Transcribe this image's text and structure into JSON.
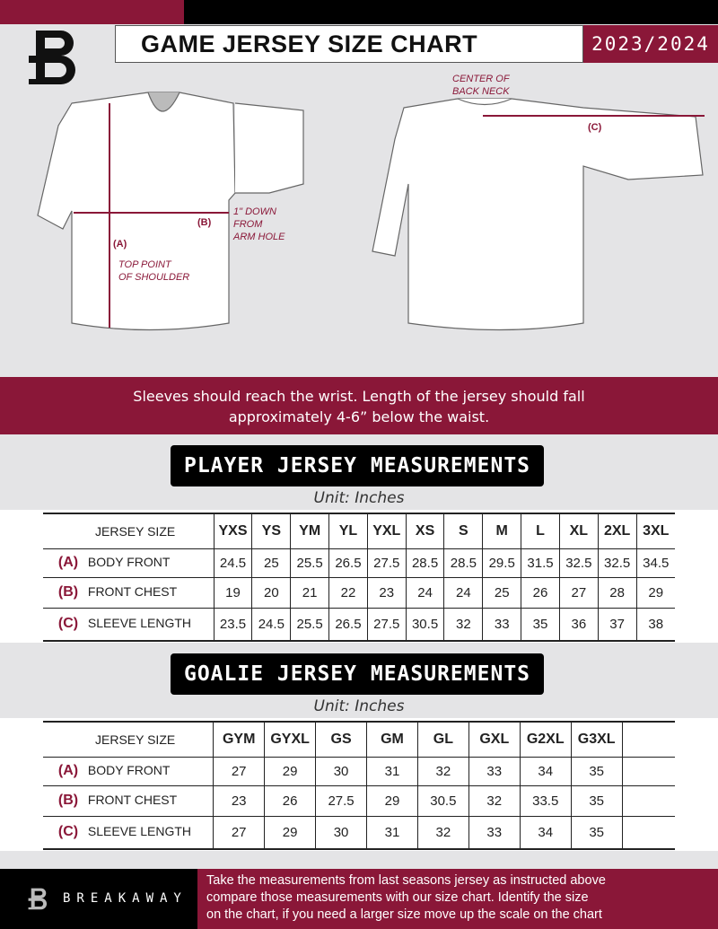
{
  "header": {
    "title": "GAME JERSEY SIZE CHART",
    "season": "2023/2024",
    "logo_letter": "B"
  },
  "diagram": {
    "center_back_neck": [
      "CENTER OF",
      "BACK NECK"
    ],
    "label_a": "(A)",
    "label_b": "(B)",
    "label_c": "(C)",
    "arm_hole_note": [
      "1\" DOWN",
      "FROM",
      "ARM HOLE"
    ],
    "shoulder_note": [
      "TOP POINT",
      "OF SHOULDER"
    ]
  },
  "band_text": [
    "Sleeves should reach the wrist. Length of the jersey should fall",
    "approximately 4-6” below the waist."
  ],
  "player": {
    "title": "PLAYER JERSEY MEASUREMENTS",
    "unit": "Unit: Inches",
    "header_label": "JERSEY SIZE",
    "sizes": [
      "YXS",
      "YS",
      "YM",
      "YL",
      "YXL",
      "XS",
      "S",
      "M",
      "L",
      "XL",
      "2XL",
      "3XL"
    ],
    "rows": [
      {
        "letter": "(A)",
        "label": "BODY FRONT",
        "values": [
          "24.5",
          "25",
          "25.5",
          "26.5",
          "27.5",
          "28.5",
          "28.5",
          "29.5",
          "31.5",
          "32.5",
          "32.5",
          "34.5"
        ]
      },
      {
        "letter": "(B)",
        "label": "FRONT CHEST",
        "values": [
          "19",
          "20",
          "21",
          "22",
          "23",
          "24",
          "24",
          "25",
          "26",
          "27",
          "28",
          "29"
        ]
      },
      {
        "letter": "(C)",
        "label": "SLEEVE LENGTH",
        "values": [
          "23.5",
          "24.5",
          "25.5",
          "26.5",
          "27.5",
          "30.5",
          "32",
          "33",
          "35",
          "36",
          "37",
          "38"
        ]
      }
    ]
  },
  "goalie": {
    "title": "GOALIE JERSEY MEASUREMENTS",
    "unit": "Unit: Inches",
    "header_label": "JERSEY SIZE",
    "sizes": [
      "GYM",
      "GYXL",
      "GS",
      "GM",
      "GL",
      "GXL",
      "G2XL",
      "G3XL",
      ""
    ],
    "rows": [
      {
        "letter": "(A)",
        "label": "BODY FRONT",
        "values": [
          "27",
          "29",
          "30",
          "31",
          "32",
          "33",
          "34",
          "35",
          ""
        ]
      },
      {
        "letter": "(B)",
        "label": "FRONT CHEST",
        "values": [
          "23",
          "26",
          "27.5",
          "29",
          "30.5",
          "32",
          "33.5",
          "35",
          ""
        ]
      },
      {
        "letter": "(C)",
        "label": "SLEEVE LENGTH",
        "values": [
          "27",
          "29",
          "30",
          "31",
          "32",
          "33",
          "34",
          "35",
          ""
        ]
      }
    ]
  },
  "footer": {
    "brand": "BREAKAWAY",
    "text": [
      "Take the measurements from last seasons jersey as instructed above",
      "compare those measurements  with our size chart. Identify the size",
      "on the chart, if you need a larger size move up the scale on the chart"
    ]
  },
  "colors": {
    "accent": "#8a1738",
    "background": "#e4e4e6",
    "dark": "#000000"
  }
}
